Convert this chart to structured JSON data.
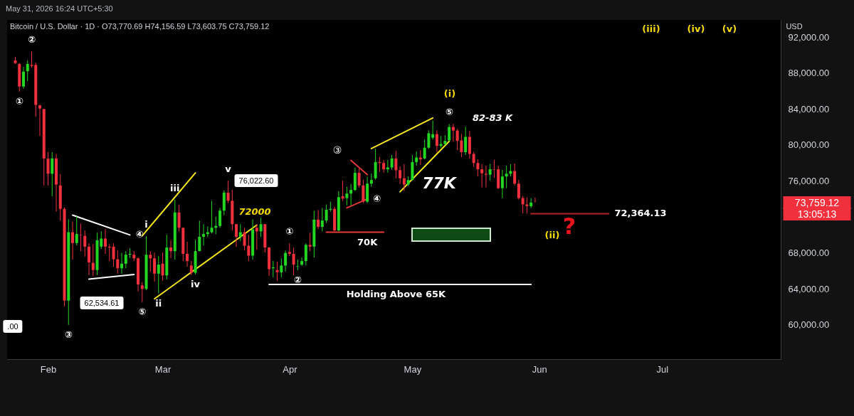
{
  "chart_data": {
    "type": "candlestick",
    "title": "Bitcoin / U.S. Dollar · 1D · O73,770.69 H74,156.59 L73,603.75 C73,759.12",
    "subtitle": "May 31, 2026 16:24 UTC+5:30",
    "x": [
      "2026-01-24",
      "2026-01-25",
      "2026-01-26",
      "2026-01-27",
      "2026-01-28",
      "2026-01-29",
      "2026-01-30",
      "2026-01-31",
      "2026-02-01",
      "2026-02-02",
      "2026-02-03",
      "2026-02-04",
      "2026-02-05",
      "2026-02-06",
      "2026-02-07",
      "2026-02-08",
      "2026-02-09",
      "2026-02-10",
      "2026-02-11",
      "2026-02-12",
      "2026-02-13",
      "2026-02-14",
      "2026-02-15",
      "2026-02-16",
      "2026-02-17",
      "2026-02-18",
      "2026-02-19",
      "2026-02-20",
      "2026-02-21",
      "2026-02-22",
      "2026-02-23",
      "2026-02-24",
      "2026-02-25",
      "2026-02-26",
      "2026-02-27",
      "2026-02-28",
      "2026-03-01",
      "2026-03-02",
      "2026-03-03",
      "2026-03-04",
      "2026-03-05",
      "2026-03-06",
      "2026-03-07",
      "2026-03-08",
      "2026-03-09",
      "2026-03-10",
      "2026-03-11",
      "2026-03-12",
      "2026-03-13",
      "2026-03-14",
      "2026-03-15",
      "2026-03-16",
      "2026-03-17",
      "2026-03-18",
      "2026-03-19",
      "2026-03-20",
      "2026-03-21",
      "2026-03-22",
      "2026-03-23",
      "2026-03-24",
      "2026-03-25",
      "2026-03-26",
      "2026-03-27",
      "2026-03-28",
      "2026-03-29",
      "2026-03-30",
      "2026-03-31",
      "2026-04-01",
      "2026-04-02",
      "2026-04-03",
      "2026-04-04",
      "2026-04-05",
      "2026-04-06",
      "2026-04-07",
      "2026-04-08",
      "2026-04-09",
      "2026-04-10",
      "2026-04-11",
      "2026-04-12",
      "2026-04-13",
      "2026-04-14",
      "2026-04-15",
      "2026-04-16",
      "2026-04-17",
      "2026-04-18",
      "2026-04-19",
      "2026-04-20",
      "2026-04-21",
      "2026-04-22",
      "2026-04-23",
      "2026-04-24",
      "2026-04-25",
      "2026-04-26",
      "2026-04-27",
      "2026-04-28",
      "2026-04-29",
      "2026-04-30",
      "2026-05-01",
      "2026-05-02",
      "2026-05-03",
      "2026-05-04",
      "2026-05-05",
      "2026-05-06",
      "2026-05-07",
      "2026-05-08",
      "2026-05-09",
      "2026-05-10",
      "2026-05-11",
      "2026-05-12",
      "2026-05-13",
      "2026-05-14",
      "2026-05-15",
      "2026-05-16",
      "2026-05-17",
      "2026-05-18",
      "2026-05-19",
      "2026-05-20",
      "2026-05-21",
      "2026-05-22",
      "2026-05-23",
      "2026-05-24",
      "2026-05-25",
      "2026-05-26",
      "2026-05-27",
      "2026-05-28",
      "2026-05-29",
      "2026-05-30",
      "2026-05-31"
    ],
    "ohlc": [
      [
        89400,
        89800,
        89000,
        89100
      ],
      [
        89000,
        89100,
        85940,
        86500
      ],
      [
        86500,
        88690,
        86260,
        88150
      ],
      [
        88200,
        89400,
        87100,
        89000
      ],
      [
        88900,
        90400,
        88600,
        88800
      ],
      [
        88900,
        89150,
        83120,
        84450
      ],
      [
        84400,
        84500,
        81000,
        84050
      ],
      [
        84000,
        84000,
        75500,
        78500
      ],
      [
        78500,
        79200,
        75500,
        76800
      ],
      [
        76800,
        79200,
        74300,
        78500
      ],
      [
        78500,
        79000,
        72600,
        75600
      ],
      [
        75500,
        76760,
        71580,
        72900
      ],
      [
        72900,
        73070,
        62080,
        62700
      ],
      [
        62700,
        71740,
        60000,
        70300
      ],
      [
        70300,
        71500,
        67260,
        69100
      ],
      [
        69100,
        72100,
        68830,
        70100
      ],
      [
        70000,
        71260,
        68200,
        69950
      ],
      [
        69900,
        70500,
        67600,
        68700
      ],
      [
        68700,
        69070,
        65530,
        66950
      ],
      [
        66900,
        69000,
        65400,
        66100
      ],
      [
        66100,
        70250,
        65530,
        69400
      ],
      [
        68700,
        70400,
        68440,
        69600
      ],
      [
        69600,
        70640,
        67890,
        68700
      ],
      [
        68700,
        68990,
        67100,
        68600
      ],
      [
        68700,
        69070,
        66480,
        67300
      ],
      [
        67300,
        68280,
        65690,
        66300
      ],
      [
        66300,
        68000,
        65690,
        66800
      ],
      [
        66800,
        68200,
        66300,
        67800
      ],
      [
        67800,
        68520,
        67420,
        67900
      ],
      [
        67800,
        68200,
        67100,
        67400
      ],
      [
        67400,
        67500,
        63730,
        64500
      ],
      [
        64400,
        64750,
        62534.61,
        64000
      ],
      [
        64000,
        69850,
        63880,
        67800
      ],
      [
        67800,
        68200,
        65900,
        67400
      ],
      [
        67400,
        68050,
        64830,
        65700
      ],
      [
        65700,
        67650,
        63500,
        66700
      ],
      [
        66800,
        68050,
        64910,
        65500
      ],
      [
        65500,
        70010,
        65060,
        68600
      ],
      [
        68600,
        69380,
        67420,
        68200
      ],
      [
        68200,
        73930,
        67260,
        72500
      ],
      [
        72500,
        73380,
        70400,
        70800
      ],
      [
        70800,
        70800,
        67100,
        67900
      ],
      [
        67900,
        69230,
        66480,
        67100
      ],
      [
        66600,
        67100,
        65530,
        65800
      ],
      [
        65800,
        69460,
        65600,
        68200
      ],
      [
        68200,
        71580,
        68200,
        69800
      ],
      [
        69800,
        71190,
        68830,
        70100
      ],
      [
        70100,
        70950,
        69770,
        70300
      ],
      [
        70300,
        73780,
        70160,
        70800
      ],
      [
        70800,
        72050,
        70080,
        71000
      ],
      [
        71000,
        73000,
        70800,
        72700
      ],
      [
        72700,
        74950,
        72200,
        74700
      ],
      [
        74700,
        76022.6,
        73540,
        73800
      ],
      [
        73800,
        75000,
        70480,
        71200
      ],
      [
        71200,
        71200,
        68670,
        69800
      ],
      [
        69800,
        71190,
        69300,
        70300
      ],
      [
        70300,
        70790,
        68280,
        68800
      ],
      [
        68800,
        70010,
        67100,
        67700
      ],
      [
        67700,
        71740,
        67260,
        70600
      ],
      [
        70800,
        71190,
        68350,
        70400
      ],
      [
        70400,
        71900,
        69770,
        71200
      ],
      [
        71200,
        71200,
        68050,
        68600
      ],
      [
        68600,
        68670,
        65450,
        66200
      ],
      [
        66300,
        67100,
        65300,
        66400
      ],
      [
        66100,
        67030,
        64900,
        65850
      ],
      [
        65850,
        67400,
        65300,
        66600
      ],
      [
        66600,
        68280,
        65930,
        68000
      ],
      [
        68100,
        69070,
        67650,
        67900
      ],
      [
        67900,
        68590,
        65530,
        66700
      ],
      [
        66500,
        67260,
        66080,
        66550
      ],
      [
        66700,
        67490,
        66550,
        67100
      ],
      [
        67100,
        69070,
        66630,
        68900
      ],
      [
        68900,
        70250,
        68200,
        68700
      ],
      [
        68700,
        72680,
        67500,
        71700
      ],
      [
        71700,
        72760,
        70640,
        70900
      ],
      [
        70900,
        72990,
        70400,
        71600
      ],
      [
        71600,
        73380,
        71340,
        72800
      ],
      [
        72800,
        73700,
        72600,
        72900
      ],
      [
        72900,
        73150,
        70400,
        70500
      ],
      [
        70500,
        74870,
        70400,
        74200
      ],
      [
        74300,
        76050,
        73780,
        74050
      ],
      [
        74100,
        75350,
        73300,
        74600
      ],
      [
        74600,
        75660,
        73300,
        75000
      ],
      [
        75000,
        77470,
        74870,
        76900
      ],
      [
        76900,
        77390,
        75270,
        75500
      ],
      [
        75500,
        76130,
        73540,
        73700
      ],
      [
        73700,
        76450,
        73540,
        75700
      ],
      [
        75700,
        76840,
        75350,
        76100
      ],
      [
        76300,
        79580,
        76130,
        78100
      ],
      [
        78100,
        78660,
        77000,
        78000
      ],
      [
        78000,
        78330,
        76920,
        77300
      ],
      [
        77300,
        78330,
        76920,
        77500
      ],
      [
        77500,
        78880,
        77230,
        78500
      ],
      [
        78500,
        79350,
        76290,
        77200
      ],
      [
        77200,
        77620,
        75660,
        76300
      ],
      [
        76300,
        77860,
        74870,
        75600
      ],
      [
        75600,
        76520,
        75430,
        76100
      ],
      [
        76100,
        78880,
        76050,
        78100
      ],
      [
        78100,
        79270,
        77700,
        78600
      ],
      [
        78600,
        79420,
        77780,
        78400
      ],
      [
        78500,
        80600,
        78400,
        79700
      ],
      [
        79700,
        81630,
        79580,
        81300
      ],
      [
        80800,
        82720,
        80600,
        81200
      ],
      [
        81200,
        81630,
        79190,
        79900
      ],
      [
        79900,
        81000,
        79700,
        80100
      ],
      [
        80100,
        81080,
        79970,
        80450
      ],
      [
        80500,
        82330,
        80450,
        82000
      ],
      [
        82000,
        82330,
        80370,
        81600
      ],
      [
        81600,
        81780,
        79430,
        80450
      ],
      [
        80500,
        81230,
        78640,
        79200
      ],
      [
        79200,
        82020,
        78880,
        80900
      ],
      [
        80900,
        81550,
        78490,
        79000
      ],
      [
        79000,
        79230,
        77550,
        78000
      ],
      [
        78000,
        78410,
        76520,
        77300
      ],
      [
        77300,
        77860,
        75270,
        76850
      ],
      [
        76800,
        77700,
        75270,
        76700
      ],
      [
        76700,
        77900,
        76050,
        77300
      ],
      [
        77300,
        78330,
        76370,
        77250
      ],
      [
        77300,
        77700,
        75110,
        75200
      ],
      [
        75200,
        77230,
        74090,
        76500
      ],
      [
        76500,
        77700,
        75190,
        76800
      ],
      [
        76800,
        77860,
        76500,
        77100
      ],
      [
        77100,
        77940,
        75500,
        75700
      ],
      [
        75700,
        76130,
        73930,
        74100
      ],
      [
        74100,
        74330,
        72400,
        73400
      ],
      [
        73400,
        74170,
        72364.13,
        73200
      ],
      [
        73200,
        74090,
        72990,
        73600
      ],
      [
        73770.69,
        74156.59,
        73603.75,
        73759.12
      ]
    ],
    "colors": [
      "#f0313d",
      "#f0313d",
      "#22d622",
      "#22d622",
      "#f0313d",
      "#f0313d",
      "#f0313d",
      "#f0313d",
      "#f0313d",
      "#22d622",
      "#f0313d",
      "#f0313d",
      "#f0313d",
      "#22d622",
      "#f0313d",
      "#22d622",
      "#f0313d",
      "#f0313d",
      "#f0313d",
      "#f0313d",
      "#22d622",
      "#22d622",
      "#f0313d",
      "#f0313d",
      "#f0313d",
      "#f0313d",
      "#22d622",
      "#22d622",
      "#22d622",
      "#f0313d",
      "#f0313d",
      "#f0313d",
      "#22d622",
      "#f0313d",
      "#f0313d",
      "#22d622",
      "#f0313d",
      "#22d622",
      "#f0313d",
      "#22d622",
      "#f0313d",
      "#f0313d",
      "#f0313d",
      "#f0313d",
      "#22d622",
      "#22d622",
      "#22d622",
      "#22d622",
      "#22d622",
      "#22d622",
      "#22d622",
      "#22d622",
      "#f0313d",
      "#f0313d",
      "#f0313d",
      "#22d622",
      "#f0313d",
      "#f0313d",
      "#22d622",
      "#f0313d",
      "#22d622",
      "#f0313d",
      "#f0313d",
      "#22d622",
      "#f0313d",
      "#22d622",
      "#22d622",
      "#f0313d",
      "#f0313d",
      "#22d622",
      "#22d622",
      "#22d622",
      "#f0313d",
      "#22d622",
      "#f0313d",
      "#22d622",
      "#22d622",
      "#22d622",
      "#f0313d",
      "#22d622",
      "#f0313d",
      "#22d622",
      "#22d622",
      "#22d622",
      "#f0313d",
      "#f0313d",
      "#22d622",
      "#22d622",
      "#22d622",
      "#f0313d",
      "#f0313d",
      "#22d622",
      "#22d622",
      "#f0313d",
      "#f0313d",
      "#f0313d",
      "#22d622",
      "#22d622",
      "#22d622",
      "#f0313d",
      "#22d622",
      "#22d622",
      "#22d622",
      "#f0313d",
      "#22d622",
      "#22d622",
      "#22d622",
      "#f0313d",
      "#f0313d",
      "#f0313d",
      "#22d622",
      "#f0313d",
      "#f0313d",
      "#f0313d",
      "#f0313d",
      "#f0313d",
      "#22d622",
      "#f0313d",
      "#f0313d",
      "#22d622",
      "#22d622",
      "#22d622",
      "#f0313d",
      "#f0313d",
      "#f0313d",
      "#f0313d",
      "#22d622",
      "#f0313d"
    ],
    "series": [
      {
        "type": "line",
        "color": "#ffffff",
        "x": [
          "2026-02-07",
          "2026-02-21"
        ],
        "values": [
          72200,
          70000
        ]
      },
      {
        "type": "line",
        "color": "#ffffff",
        "x": [
          "2026-02-11",
          "2026-02-22"
        ],
        "values": [
          65100,
          65600
        ]
      },
      {
        "type": "line",
        "color": "#f5e61e",
        "x": [
          "2026-02-24",
          "2026-03-09"
        ],
        "values": [
          69900,
          76900
        ]
      },
      {
        "type": "line",
        "color": "#f5e61e",
        "x": [
          "2026-02-27",
          "2026-03-24"
        ],
        "values": [
          62900,
          71100
        ]
      },
      {
        "type": "line",
        "color": "#e53935",
        "x": [
          "2026-04-16",
          "2026-04-20"
        ],
        "values": [
          78300,
          76700
        ]
      },
      {
        "type": "line",
        "color": "#e53935",
        "x": [
          "2026-04-15",
          "2026-04-20"
        ],
        "values": [
          73000,
          74000
        ]
      },
      {
        "type": "line",
        "color": "#e53935",
        "x": [
          "2026-04-10",
          "2026-04-24"
        ],
        "values": [
          70300,
          70300
        ]
      },
      {
        "type": "line",
        "color": "#f5e61e",
        "x": [
          "2026-04-21",
          "2026-05-06"
        ],
        "values": [
          79600,
          83000
        ]
      },
      {
        "type": "line",
        "color": "#f5e61e",
        "x": [
          "2026-04-28",
          "2026-05-10"
        ],
        "values": [
          74800,
          80400
        ]
      },
      {
        "type": "line",
        "color": "#ffffff",
        "x": [
          "2026-03-27",
          "2026-05-30"
        ],
        "values": [
          64500,
          64500
        ]
      },
      {
        "type": "line",
        "color": "#b22222",
        "x": [
          "2026-05-30",
          "2026-06-18"
        ],
        "values": [
          72364.13,
          72364.13
        ]
      }
    ],
    "annotations": [
      {
        "text": "①",
        "x": "2026-01-25",
        "y": 85940
      },
      {
        "text": "②",
        "x": "2026-01-28",
        "y": 90400
      },
      {
        "text": "③",
        "x": "2026-02-06",
        "y": 60000
      },
      {
        "text": "④",
        "x": "2026-02-21",
        "y": 70000
      },
      {
        "text": "⑤",
        "x": "2026-02-24",
        "y": 62534.61
      },
      {
        "text": "i",
        "x": "2026-02-25",
        "y": 69850
      },
      {
        "text": "ii",
        "x": "2026-02-28",
        "y": 63500
      },
      {
        "text": "iii",
        "x": "2026-03-04",
        "y": 73930
      },
      {
        "text": "iv",
        "x": "2026-03-09",
        "y": 65600
      },
      {
        "text": "v",
        "x": "2026-03-17",
        "y": 76022.6
      },
      "76,022.60",
      "62,534.61",
      ".00",
      "72000",
      {
        "text": "①",
        "x": "2026-04-01",
        "y": 69070
      },
      {
        "text": "②",
        "x": "2026-04-03",
        "y": 66080
      },
      "③",
      {
        "text": "④",
        "x": "2026-04-20",
        "y": 74000
      },
      {
        "text": "70K",
        "x": "2026-04-20",
        "y": 70300
      },
      {
        "text": "⑤",
        "x": "2026-05-10",
        "y": 82330
      },
      "(i)",
      "82-83 K",
      "77K",
      {
        "text": "Holding Above 65K",
        "x": "2026-04-27",
        "y": 64500
      },
      "(ii)",
      "?",
      "(iii)",
      "(iv)",
      "(v)",
      {
        "text": "72,364.13",
        "x": "2026-06-18",
        "y": 72364.13
      },
      "USD",
      "73,759.12",
      "13:05:13"
    ],
    "xlim": [
      "2026-01-22",
      "2026-07-30"
    ],
    "xticks": [
      {
        "value": "2026-02-01",
        "label": "Feb"
      },
      {
        "value": "2026-03-01",
        "label": "Mar"
      },
      {
        "value": "2026-04-01",
        "label": "Apr"
      },
      {
        "value": "2026-05-01",
        "label": "May"
      },
      {
        "value": "2026-06-01",
        "label": "Jun"
      },
      {
        "value": "2026-07-01",
        "label": "Jul"
      }
    ],
    "ylim": [
      56200,
      93900
    ],
    "yticks": [
      {
        "value": 60000,
        "label": "60,000.00"
      },
      {
        "value": 64000,
        "label": "64,000.00"
      },
      {
        "value": 68000,
        "label": "68,000.00"
      },
      {
        "value": 76000,
        "label": "76,000.00"
      },
      {
        "value": 80000,
        "label": "80,000.00"
      },
      {
        "value": 84000,
        "label": "84,000.00"
      },
      {
        "value": 88000,
        "label": "88,000.00"
      },
      {
        "value": 92000,
        "label": "92,000.00"
      }
    ]
  }
}
